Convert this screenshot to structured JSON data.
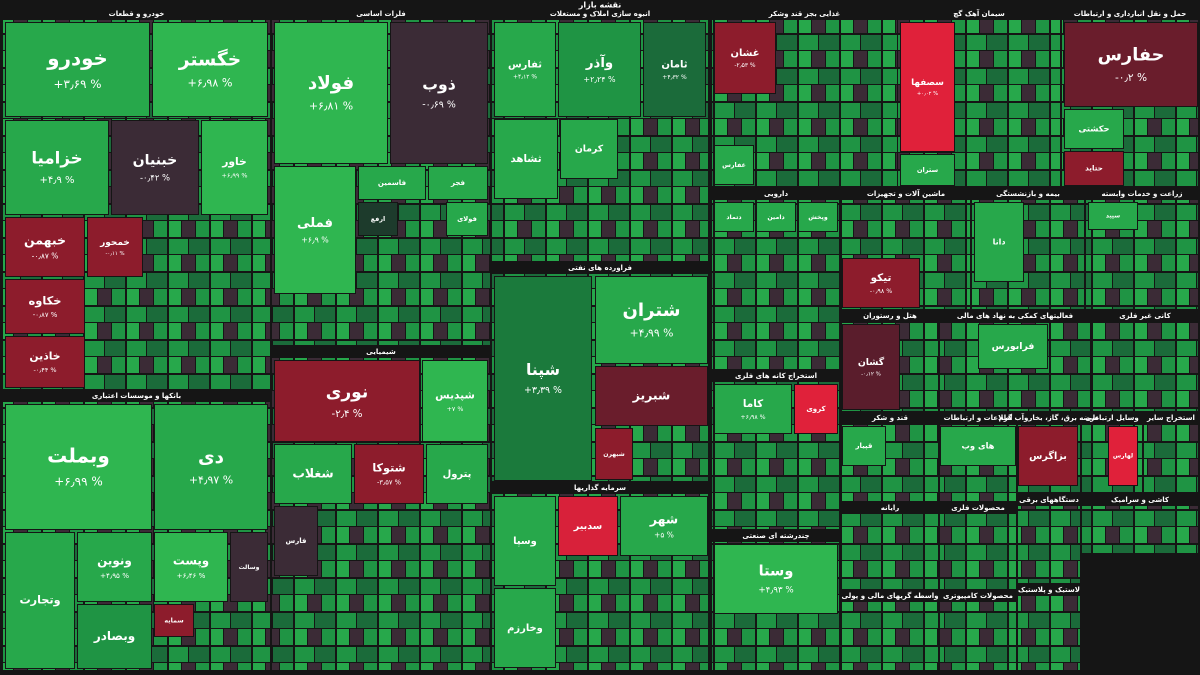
{
  "title": "نقشه بازار",
  "sectors": [
    {
      "name": "خودرو و قطعات",
      "tiles": [
        {
          "name": "خودرو",
          "change": "+۳٫۶۹ %",
          "color": "#27a84b"
        },
        {
          "name": "خگستر",
          "change": "+۶٫۹۸ %",
          "color": "#2fb650"
        },
        {
          "name": "خزامیا",
          "change": "+۴٫۹ %",
          "color": "#27a84b"
        },
        {
          "name": "خبنیان",
          "change": "-۰٫۴۲ %",
          "color": "#3b2b36"
        },
        {
          "name": "خاور",
          "change": "+۶٫۹۹ %",
          "color": "#2fb650"
        },
        {
          "name": "خبهمن",
          "change": "-۰٫۸۷ %",
          "color": "#8d1c2c"
        },
        {
          "name": "خمحور",
          "change": "-۰٫۱۱ %",
          "color": "#8d1c2c"
        },
        {
          "name": "خکاوه",
          "change": "-۰٫۸۷ %",
          "color": "#8d1c2c"
        },
        {
          "name": "خاذین",
          "change": "-۰٫۴۴ %",
          "color": "#8d1c2c"
        }
      ]
    },
    {
      "name": "بانکها و موسسات اعتباری",
      "tiles": [
        {
          "name": "وبملت",
          "change": "+۶٫۹۹ %",
          "color": "#2fb650"
        },
        {
          "name": "دی",
          "change": "+۴٫۹۷ %",
          "color": "#27a84b"
        },
        {
          "name": "وتجارت",
          "color": "#27a84b"
        },
        {
          "name": "ونوین",
          "change": "+۴٫۹۵ %",
          "color": "#27a84b"
        },
        {
          "name": "وپست",
          "change": "+۶٫۴۶ %",
          "color": "#2fb650"
        },
        {
          "name": "وسالت",
          "color": "#3b2b36"
        },
        {
          "name": "وبصادر",
          "color": "#1f9444"
        },
        {
          "name": "سمایه",
          "color": "#8d1c2c"
        }
      ]
    },
    {
      "name": "فلزات اساسی",
      "tiles": [
        {
          "name": "فولاد",
          "change": "+۶٫۸۱ %",
          "color": "#2fb650"
        },
        {
          "name": "ذوب",
          "change": "-۰٫۶۹ %",
          "color": "#3b2b36"
        },
        {
          "name": "فملی",
          "change": "+۶٫۹ %",
          "color": "#2fb650"
        },
        {
          "name": "فاسمین",
          "color": "#27a84b"
        },
        {
          "name": "فجر",
          "color": "#27a84b"
        },
        {
          "name": "ارفع",
          "color": "#1d3b2c"
        },
        {
          "name": "فولای",
          "color": "#27a84b"
        }
      ]
    },
    {
      "name": "شیمیایی",
      "tiles": [
        {
          "name": "نوری",
          "change": "-۲٫۴ %",
          "color": "#8d1c2c"
        },
        {
          "name": "شپدیس",
          "change": "+۷ %",
          "color": "#2fb650"
        },
        {
          "name": "شغلاب",
          "color": "#27a84b"
        },
        {
          "name": "شتوکا",
          "change": "-۳٫۵۷ %",
          "color": "#8d1c2c"
        },
        {
          "name": "پترول",
          "color": "#27a84b"
        },
        {
          "name": "فارس",
          "color": "#3b2b36"
        }
      ]
    },
    {
      "name": "انبوه سازی املاک و مستغلات",
      "tiles": [
        {
          "name": "ثفارس",
          "change": "+۴٫۱۲ %",
          "color": "#27a84b"
        },
        {
          "name": "وآذر",
          "change": "+۲٫۲۴ %",
          "color": "#1f9444"
        },
        {
          "name": "ثامان",
          "change": "+۴٫۳۲ %",
          "color": "#1b6b3a"
        },
        {
          "name": "ثشاهد",
          "color": "#27a84b"
        },
        {
          "name": "کرمان",
          "color": "#27a84b"
        }
      ]
    },
    {
      "name": "فراورده های نفتی",
      "tiles": [
        {
          "name": "شپنا",
          "change": "+۳٫۳۹ %",
          "color": "#1b7a3c"
        },
        {
          "name": "شتران",
          "change": "+۴٫۹۹ %",
          "color": "#27a84b"
        },
        {
          "name": "شبریز",
          "color": "#6a1d2c"
        },
        {
          "name": "شبهرن",
          "color": "#8d1c2c"
        }
      ]
    },
    {
      "name": "سرمایه گذاریها",
      "tiles": [
        {
          "name": "وسپا",
          "color": "#27a84b"
        },
        {
          "name": "سدبیر",
          "color": "#d8213a"
        },
        {
          "name": "شهر",
          "change": "+۵ %",
          "color": "#27a84b"
        },
        {
          "name": "وخارزم",
          "color": "#27a84b"
        }
      ]
    },
    {
      "name": "غذایی بجز قند وشکر",
      "tiles": [
        {
          "name": "غشان",
          "change": "-۲٫۵۳ %",
          "color": "#8d1c2c"
        },
        {
          "name": "غفارس",
          "color": "#27a84b"
        }
      ]
    },
    {
      "name": "سیمان آهک گچ",
      "tiles": [
        {
          "name": "سصفها",
          "change": "+۰٫۰۲ %",
          "color": "#e0213a"
        },
        {
          "name": "ستران",
          "color": "#27a84b"
        }
      ]
    },
    {
      "name": "حمل و نقل انبارداری و ارتباطات",
      "tiles": [
        {
          "name": "حفارس",
          "change": "-۰٫۲ %",
          "color": "#6a1d2c"
        },
        {
          "name": "حکشتی",
          "color": "#27a84b"
        },
        {
          "name": "حتاید",
          "color": "#8d1c2c"
        }
      ]
    },
    {
      "name": "دارویی",
      "tiles": [
        {
          "name": "دتماد",
          "color": "#27a84b"
        },
        {
          "name": "دامین",
          "color": "#27a84b"
        },
        {
          "name": "وپخش",
          "color": "#27a84b"
        }
      ]
    },
    {
      "name": "ماشین آلات و تجهیزات",
      "tiles": [
        {
          "name": "تیکو",
          "change": "-۰٫۹۸ %",
          "color": "#8d1c2c"
        }
      ]
    },
    {
      "name": "بیمه و بازنشستگی",
      "tiles": [
        {
          "name": "دانا",
          "color": "#27a84b"
        }
      ]
    },
    {
      "name": "زراعت و خدمات وابسته",
      "tiles": [
        {
          "name": "سپید",
          "color": "#27a84b"
        }
      ]
    },
    {
      "name": "هتل و رستوران",
      "tiles": [
        {
          "name": "گشان",
          "change": "-۰٫۱۲ %",
          "color": "#5a1d2c"
        }
      ]
    },
    {
      "name": "فعالیتهای کمکی به نهاد های مالی",
      "tiles": [
        {
          "name": "فرابورس",
          "color": "#27a84b"
        }
      ]
    },
    {
      "name": "کانی غیر فلزی",
      "tiles": []
    },
    {
      "name": "استخراج کانه های فلزی",
      "tiles": [
        {
          "name": "کاما",
          "change": "+۶٫۹۸ %",
          "color": "#27a84b"
        },
        {
          "name": "کروی",
          "color": "#e0213a"
        }
      ]
    },
    {
      "name": "چندرشته ای صنعتی",
      "tiles": [
        {
          "name": "وستا",
          "change": "+۴٫۹۳ %",
          "color": "#2fb650"
        }
      ]
    },
    {
      "name": "قند و شکر",
      "tiles": [
        {
          "name": "قپیار",
          "color": "#27a84b"
        }
      ]
    },
    {
      "name": "اطلاعات و ارتباطات",
      "tiles": [
        {
          "name": "های وب",
          "color": "#27a84b"
        }
      ]
    },
    {
      "name": "عرضه برق، گاز، بخاروآب گرم",
      "tiles": [
        {
          "name": "بزاگرس",
          "color": "#8d1c2c"
        }
      ]
    },
    {
      "name": "وسایل ارتباطی",
      "tiles": [
        {
          "name": "لهارس",
          "color": "#e0213a"
        }
      ]
    },
    {
      "name": "استخراج سایر",
      "tiles": []
    },
    {
      "name": "رایانه",
      "tiles": []
    },
    {
      "name": "واسطه گریهای مالی و پولی",
      "tiles": []
    },
    {
      "name": "محصولات فلزی",
      "tiles": []
    },
    {
      "name": "محصولات کامپیوتری",
      "tiles": []
    },
    {
      "name": "کاشی و سرامیک",
      "tiles": []
    },
    {
      "name": "دستگاههای برقی",
      "tiles": []
    },
    {
      "name": "لاستیک و پلاستیک",
      "tiles": []
    }
  ]
}
